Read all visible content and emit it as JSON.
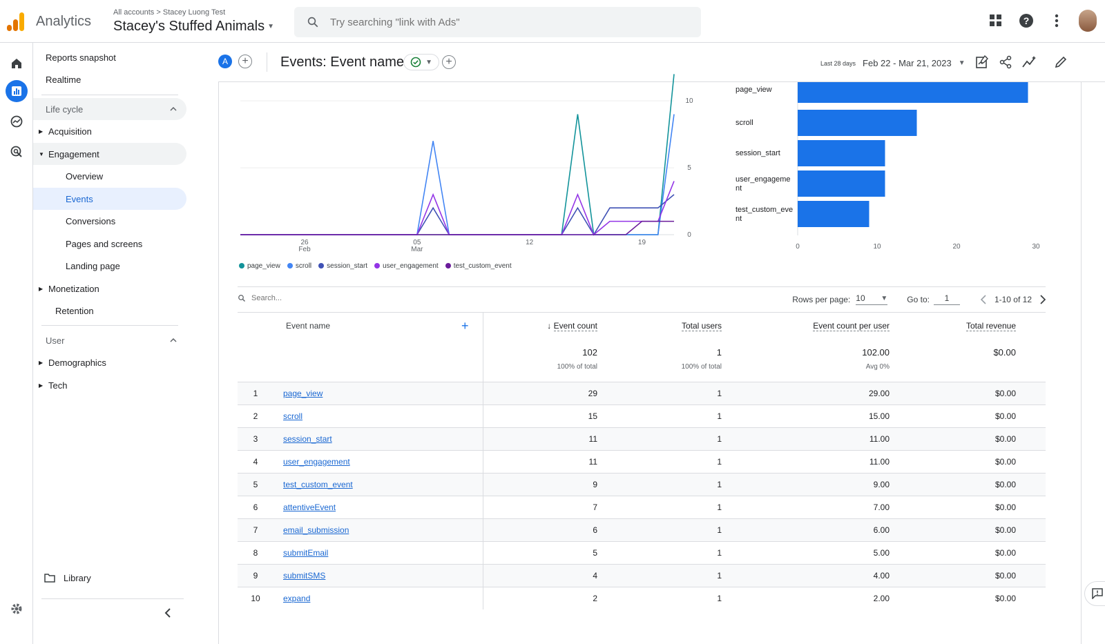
{
  "app": {
    "name": "Analytics",
    "breadcrumb": [
      "All accounts",
      "Stacey Luong Test"
    ],
    "property": "Stacey's Stuffed Animals",
    "search_placeholder": "Try searching \"link with Ads\"",
    "colors": {
      "primary": "#1a73e8",
      "bar": "#1a73e8"
    }
  },
  "rail": [
    "home-icon",
    "reports-icon",
    "explore-icon",
    "advertising-icon",
    "settings-icon"
  ],
  "nav": {
    "reports_snapshot": "Reports snapshot",
    "realtime": "Realtime",
    "lifecycle": "Life cycle",
    "acquisition": "Acquisition",
    "engagement": "Engagement",
    "overview": "Overview",
    "events": "Events",
    "conversions": "Conversions",
    "pages_and_screens": "Pages and screens",
    "landing_page": "Landing page",
    "monetization": "Monetization",
    "retention": "Retention",
    "user": "User",
    "demographics": "Demographics",
    "tech": "Tech",
    "library": "Library"
  },
  "header": {
    "comparison_badge": "A",
    "title": "Events: Event name",
    "date_hint": "Last 28 days",
    "date_range": "Feb 22 - Mar 21, 2023"
  },
  "chart_data": [
    {
      "type": "line",
      "x_ticks": [
        "26 Feb",
        "05 Mar",
        "12",
        "19"
      ],
      "y_ticks": [
        0,
        5,
        10
      ],
      "x": [
        "Feb 22",
        "Feb 23",
        "Feb 24",
        "Feb 25",
        "Feb 26",
        "Feb 27",
        "Feb 28",
        "Mar 1",
        "Mar 2",
        "Mar 3",
        "Mar 4",
        "Mar 5",
        "Mar 6",
        "Mar 7",
        "Mar 8",
        "Mar 9",
        "Mar 10",
        "Mar 11",
        "Mar 12",
        "Mar 13",
        "Mar 14",
        "Mar 15",
        "Mar 16",
        "Mar 17",
        "Mar 18",
        "Mar 19",
        "Mar 20",
        "Mar 21"
      ],
      "series": [
        {
          "name": "page_view",
          "color": "#12939a",
          "values": [
            0,
            0,
            0,
            0,
            0,
            0,
            0,
            0,
            0,
            0,
            0,
            0,
            0,
            0,
            0,
            0,
            0,
            0,
            0,
            0,
            0,
            9,
            0,
            0,
            0,
            0,
            0,
            12
          ]
        },
        {
          "name": "scroll",
          "color": "#4285f4",
          "values": [
            0,
            0,
            0,
            0,
            0,
            0,
            0,
            0,
            0,
            0,
            0,
            0,
            7,
            0,
            0,
            0,
            0,
            0,
            0,
            0,
            0,
            0,
            0,
            0,
            0,
            0,
            0,
            9
          ]
        },
        {
          "name": "session_start",
          "color": "#3f51b5",
          "values": [
            0,
            0,
            0,
            0,
            0,
            0,
            0,
            0,
            0,
            0,
            0,
            0,
            2,
            0,
            0,
            0,
            0,
            0,
            0,
            0,
            0,
            2,
            0,
            2,
            2,
            2,
            2,
            3
          ]
        },
        {
          "name": "user_engagement",
          "color": "#9334e6",
          "values": [
            0,
            0,
            0,
            0,
            0,
            0,
            0,
            0,
            0,
            0,
            0,
            0,
            3,
            0,
            0,
            0,
            0,
            0,
            0,
            0,
            0,
            3,
            0,
            1,
            1,
            1,
            1,
            4
          ]
        },
        {
          "name": "test_custom_event",
          "color": "#6a1b9a",
          "values": [
            0,
            0,
            0,
            0,
            0,
            0,
            0,
            0,
            0,
            0,
            0,
            0,
            0,
            0,
            0,
            0,
            0,
            0,
            0,
            0,
            0,
            0,
            0,
            0,
            0,
            1,
            1,
            1
          ]
        }
      ]
    },
    {
      "type": "bar",
      "orientation": "horizontal",
      "categories": [
        "page_view",
        "scroll",
        "session_start",
        "user_engagement",
        "test_custom_event"
      ],
      "category_labels": [
        [
          "page_view"
        ],
        [
          "scroll"
        ],
        [
          "session_start"
        ],
        [
          "user_engageme",
          "nt"
        ],
        [
          "test_custom_eve",
          "nt"
        ]
      ],
      "values": [
        29,
        15,
        11,
        11,
        9
      ],
      "x_ticks": [
        0,
        10,
        20,
        30
      ],
      "xlim": [
        0,
        30
      ]
    }
  ],
  "table": {
    "search_placeholder": "Search...",
    "rows_per_page_label": "Rows per page:",
    "rows_per_page": "10",
    "goto_label": "Go to:",
    "goto_value": "1",
    "range_label": "1-10 of 12",
    "columns": [
      "Event name",
      "Event count",
      "Total users",
      "Event count per user",
      "Total revenue"
    ],
    "totals": {
      "event_count": "102",
      "event_count_pct": "100% of total",
      "total_users": "1",
      "total_users_pct": "100% of total",
      "per_user": "102.00",
      "per_user_sub": "Avg 0%",
      "revenue": "$0.00"
    },
    "rows": [
      {
        "idx": "1",
        "name": "page_view",
        "count": "29",
        "users": "1",
        "per_user": "29.00",
        "revenue": "$0.00"
      },
      {
        "idx": "2",
        "name": "scroll",
        "count": "15",
        "users": "1",
        "per_user": "15.00",
        "revenue": "$0.00"
      },
      {
        "idx": "3",
        "name": "session_start",
        "count": "11",
        "users": "1",
        "per_user": "11.00",
        "revenue": "$0.00"
      },
      {
        "idx": "4",
        "name": "user_engagement",
        "count": "11",
        "users": "1",
        "per_user": "11.00",
        "revenue": "$0.00"
      },
      {
        "idx": "5",
        "name": "test_custom_event",
        "count": "9",
        "users": "1",
        "per_user": "9.00",
        "revenue": "$0.00"
      },
      {
        "idx": "6",
        "name": "attentiveEvent",
        "count": "7",
        "users": "1",
        "per_user": "7.00",
        "revenue": "$0.00"
      },
      {
        "idx": "7",
        "name": "email_submission",
        "count": "6",
        "users": "1",
        "per_user": "6.00",
        "revenue": "$0.00"
      },
      {
        "idx": "8",
        "name": "submitEmail",
        "count": "5",
        "users": "1",
        "per_user": "5.00",
        "revenue": "$0.00"
      },
      {
        "idx": "9",
        "name": "submitSMS",
        "count": "4",
        "users": "1",
        "per_user": "4.00",
        "revenue": "$0.00"
      },
      {
        "idx": "10",
        "name": "expand",
        "count": "2",
        "users": "1",
        "per_user": "2.00",
        "revenue": "$0.00"
      }
    ]
  }
}
